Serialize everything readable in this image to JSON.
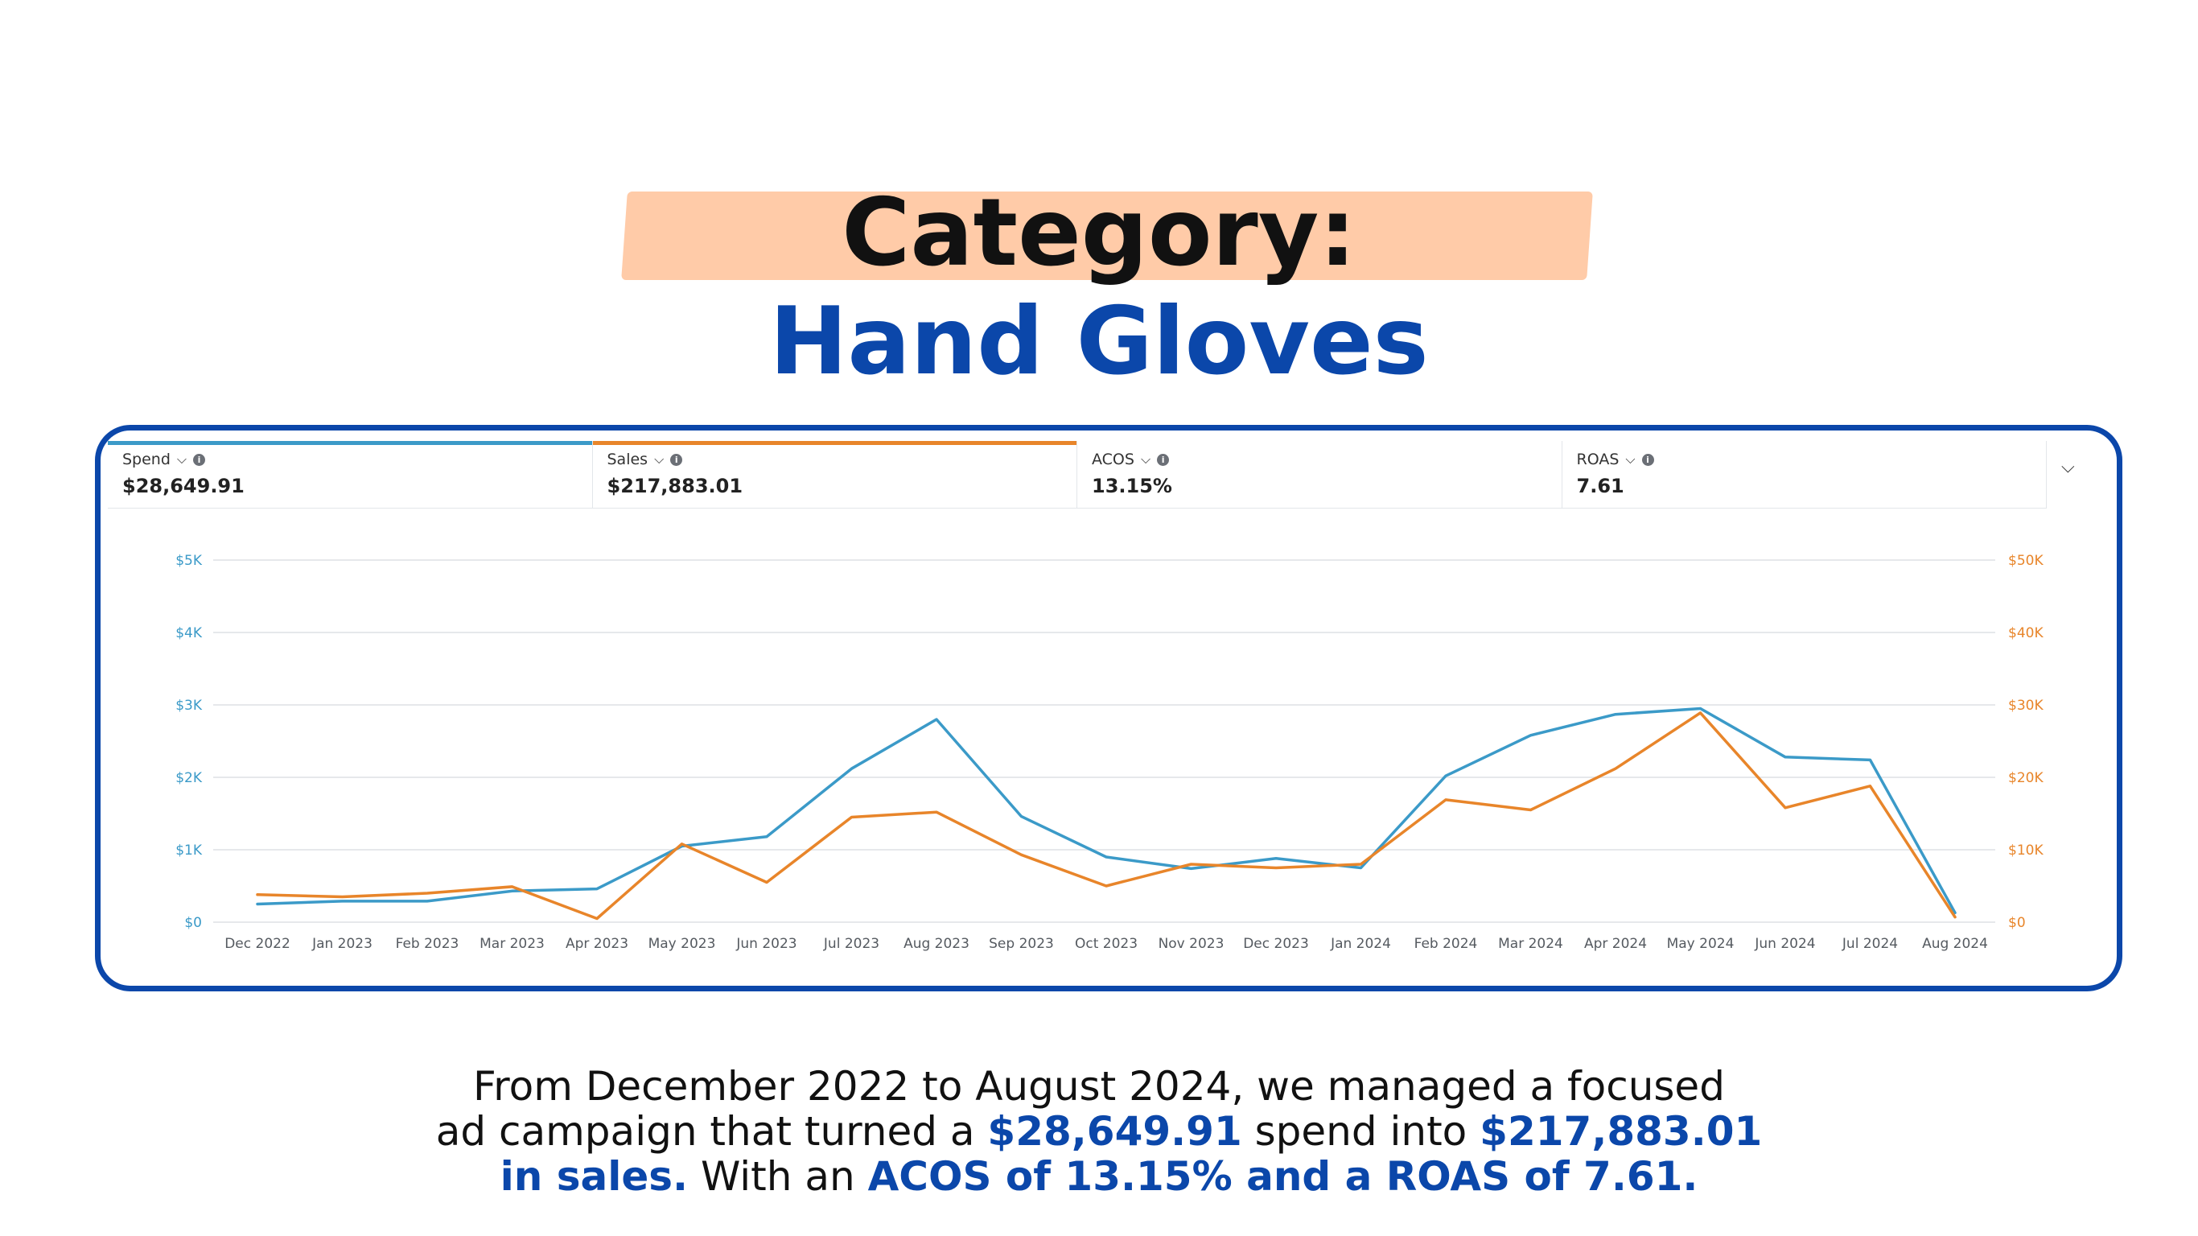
{
  "title": {
    "line1": "Category:",
    "line2": "Hand Gloves"
  },
  "metrics": [
    {
      "label": "Spend",
      "value": "$28,649.91",
      "color": "#3b9ac8"
    },
    {
      "label": "Sales",
      "value": "$217,883.01",
      "color": "#e8852a"
    },
    {
      "label": "ACOS",
      "value": "13.15%",
      "color": ""
    },
    {
      "label": "ROAS",
      "value": "7.61",
      "color": ""
    }
  ],
  "chart_data": {
    "type": "line",
    "categories": [
      "Dec 2022",
      "Jan 2023",
      "Feb 2023",
      "Mar 2023",
      "Apr 2023",
      "May 2023",
      "Jun 2023",
      "Jul 2023",
      "Aug 2023",
      "Sep 2023",
      "Oct 2023",
      "Nov 2023",
      "Dec 2023",
      "Jan 2024",
      "Feb 2024",
      "Mar 2024",
      "Apr 2024",
      "May 2024",
      "Jun 2024",
      "Jul 2024",
      "Aug 2024"
    ],
    "y_left": {
      "ticks": [
        "$0",
        "$1K",
        "$2K",
        "$3K",
        "$4K",
        "$5K"
      ],
      "range": [
        0,
        5000
      ],
      "color": "#3b9ac8"
    },
    "y_right": {
      "ticks": [
        "$0",
        "$10K",
        "$20K",
        "$30K",
        "$40K",
        "$50K"
      ],
      "range": [
        0,
        50000
      ],
      "color": "#e8852a"
    },
    "grid": true,
    "series": [
      {
        "name": "Spend",
        "axis": "left",
        "color": "#3b9ac8",
        "values": [
          250,
          290,
          290,
          430,
          460,
          1050,
          1180,
          2120,
          2800,
          1460,
          900,
          740,
          880,
          750,
          2020,
          2580,
          2870,
          2950,
          2280,
          2240,
          130
        ]
      },
      {
        "name": "Sales",
        "axis": "right",
        "color": "#e8852a",
        "values": [
          3800,
          3500,
          4000,
          4900,
          500,
          10800,
          5500,
          14500,
          15200,
          9300,
          5000,
          8000,
          7500,
          8000,
          16900,
          15500,
          21200,
          28900,
          15800,
          18800,
          700
        ]
      }
    ]
  },
  "summary": {
    "p1": "From December 2022 to August 2024, we managed a focused",
    "p2a": "ad campaign that turned a ",
    "p2b": "$28,649.91",
    "p2c": " spend into ",
    "p2d": "$217,883.01",
    "p3a": "in sales.",
    "p3b": " With an ",
    "p3c": "ACOS of 13.15% and a ROAS of 7.61."
  }
}
